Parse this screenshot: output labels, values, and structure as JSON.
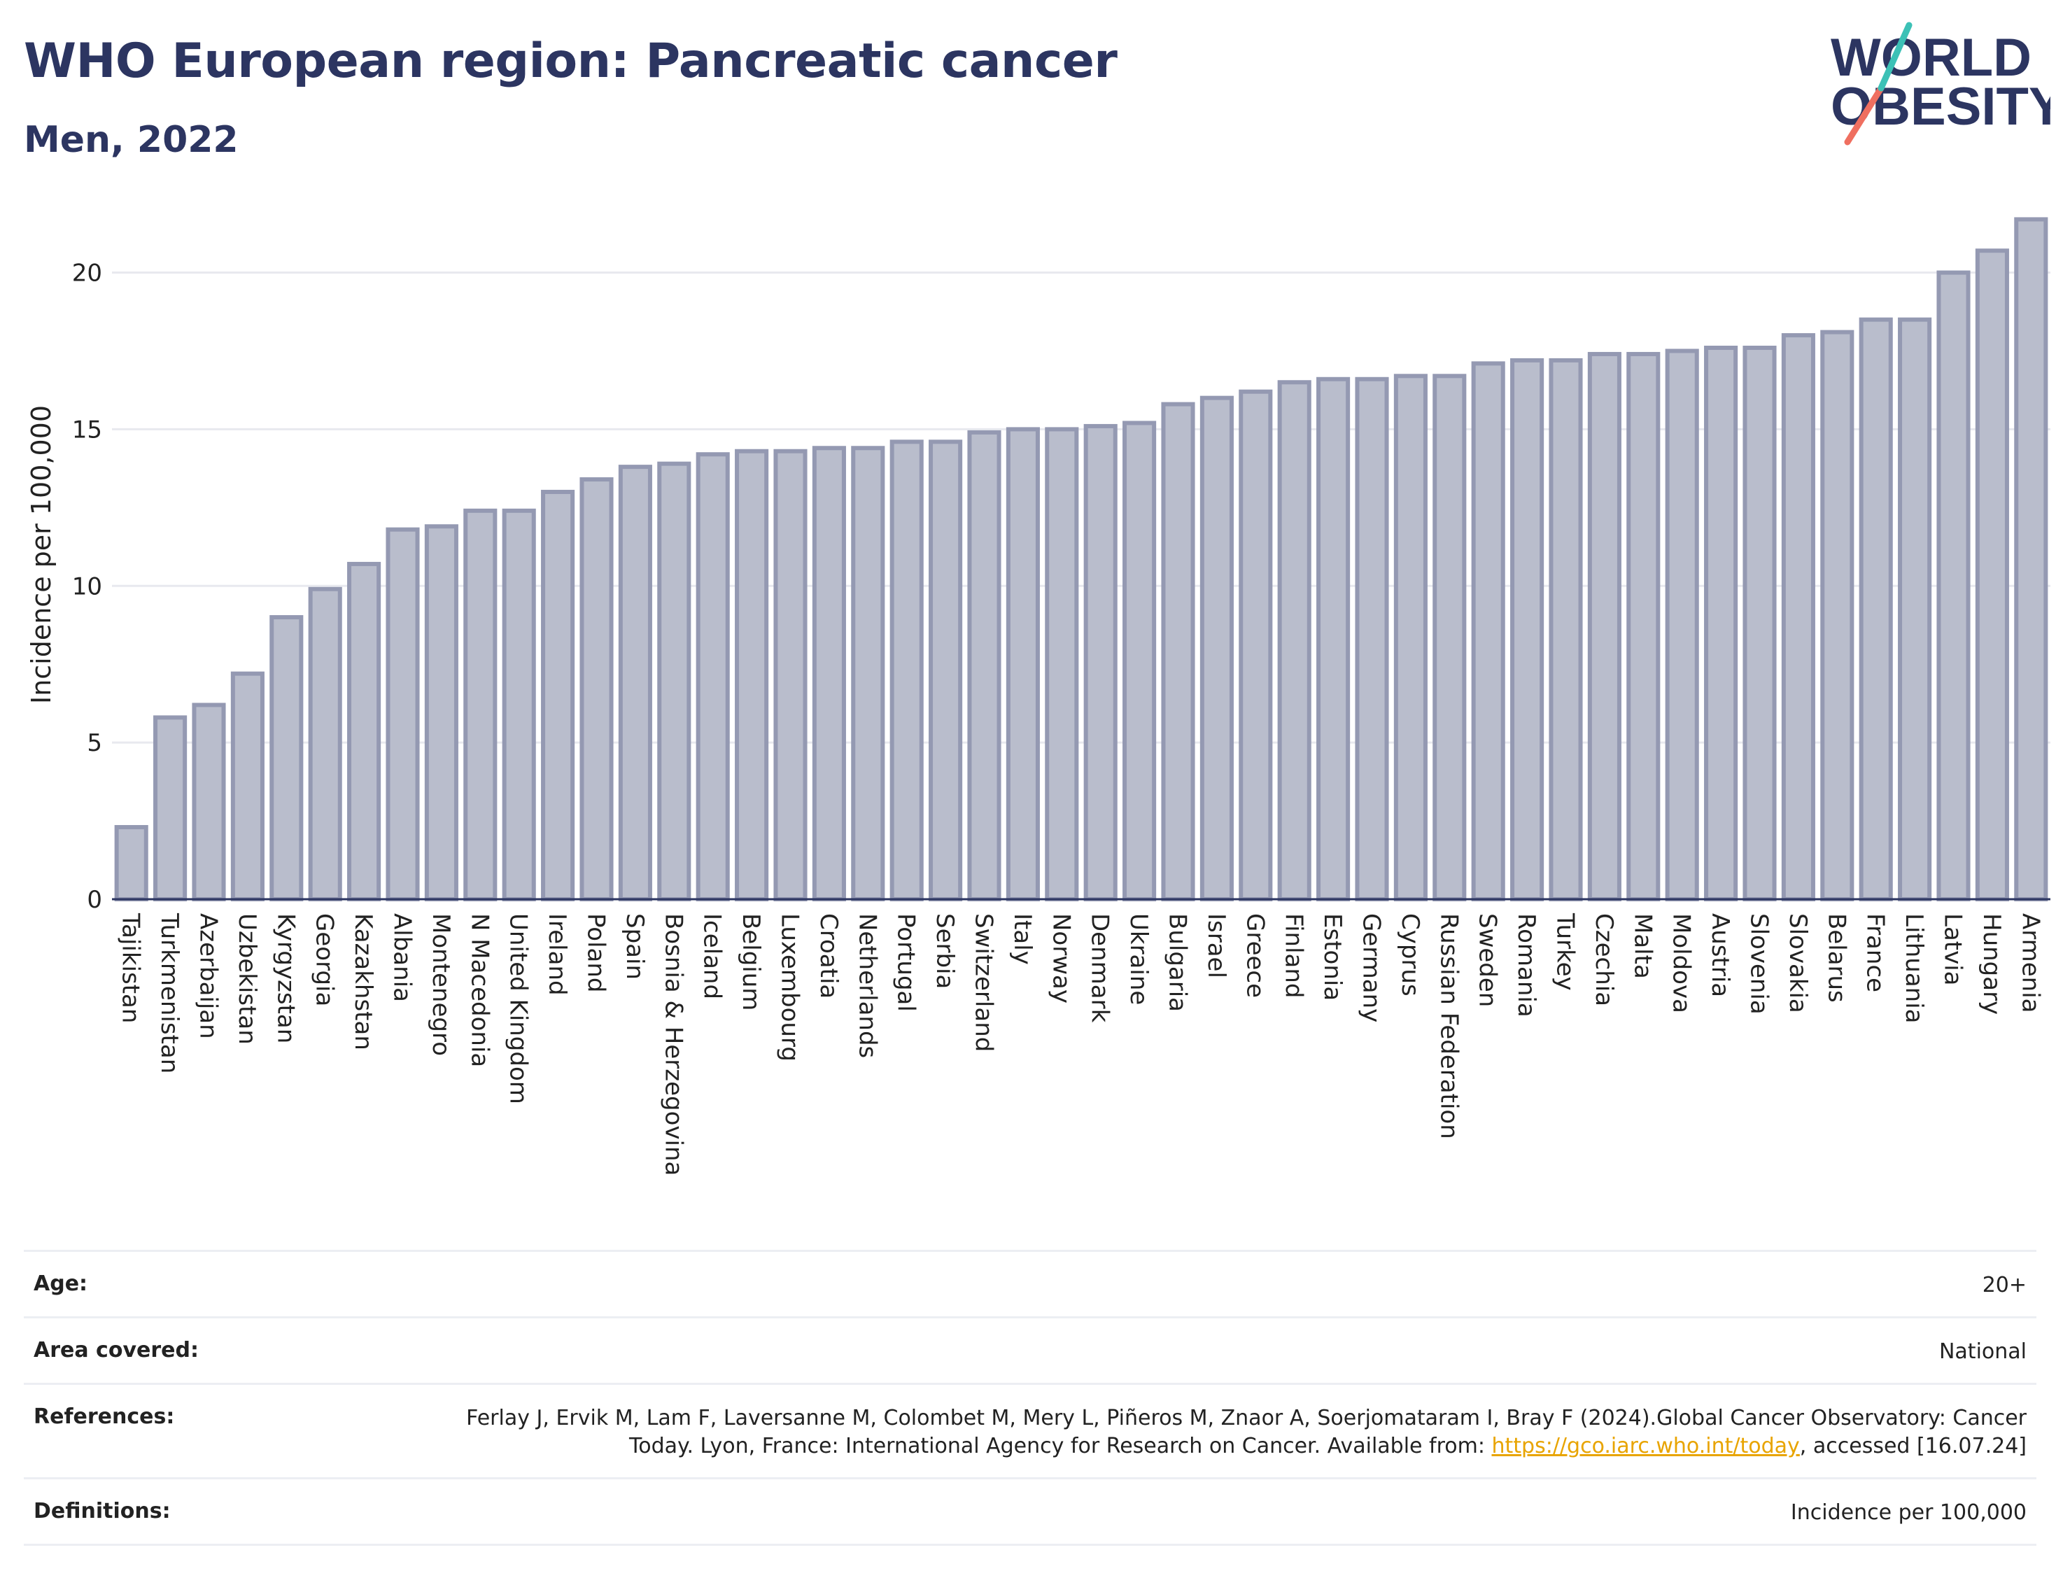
{
  "header": {
    "title": "WHO European region: Pancreatic cancer",
    "subtitle": "Men, 2022"
  },
  "logo": {
    "line1": "WORLD",
    "line2": "OBESITY",
    "colors": [
      "#2c3561",
      "#3cc1b6",
      "#ef6f60"
    ]
  },
  "chart_data": {
    "type": "bar",
    "ylabel": "Incidence per 100,000",
    "xlabel": "",
    "ylim": [
      0,
      22
    ],
    "yticks": [
      0,
      5,
      10,
      15,
      20
    ],
    "grid": true,
    "bar_color": "#b9bdcc",
    "bar_edge_color": "#9499b2",
    "categories": [
      "Tajikistan",
      "Turkmenistan",
      "Azerbaijan",
      "Uzbekistan",
      "Kyrgyzstan",
      "Georgia",
      "Kazakhstan",
      "Albania",
      "Montenegro",
      "N Macedonia",
      "United Kingdom",
      "Ireland",
      "Poland",
      "Spain",
      "Bosnia & Herzegovina",
      "Iceland",
      "Belgium",
      "Luxembourg",
      "Croatia",
      "Netherlands",
      "Portugal",
      "Serbia",
      "Switzerland",
      "Italy",
      "Norway",
      "Denmark",
      "Ukraine",
      "Bulgaria",
      "Israel",
      "Greece",
      "Finland",
      "Estonia",
      "Germany",
      "Cyprus",
      "Russian Federation",
      "Sweden",
      "Romania",
      "Turkey",
      "Czechia",
      "Malta",
      "Moldova",
      "Austria",
      "Slovenia",
      "Slovakia",
      "Belarus",
      "France",
      "Lithuania",
      "Latvia",
      "Hungary",
      "Armenia"
    ],
    "values": [
      2.3,
      5.8,
      6.2,
      7.2,
      9.0,
      9.9,
      10.7,
      11.8,
      11.9,
      12.4,
      12.4,
      13.0,
      13.4,
      13.8,
      13.9,
      14.2,
      14.3,
      14.3,
      14.4,
      14.4,
      14.6,
      14.6,
      14.9,
      15.0,
      15.0,
      15.1,
      15.2,
      15.8,
      16.0,
      16.2,
      16.5,
      16.6,
      16.6,
      16.7,
      16.7,
      17.1,
      17.2,
      17.2,
      17.4,
      17.4,
      17.5,
      17.6,
      17.6,
      18.0,
      18.1,
      18.5,
      18.5,
      20.0,
      20.7,
      21.7
    ]
  },
  "info": {
    "age_label": "Age:",
    "age_value": "20+",
    "area_label": "Area covered:",
    "area_value": "National",
    "references_label": "References:",
    "references_text": "Ferlay J, Ervik M, Lam F, Laversanne M, Colombet M, Mery L, Piñeros M, Znaor A, Soerjomataram I, Bray F (2024).Global Cancer Observatory: Cancer Today. Lyon, France: International Agency for Research on Cancer. Available from: ",
    "references_link": "https://gco.iarc.who.int/today",
    "references_tail": ", accessed [16.07.24]",
    "definitions_label": "Definitions:",
    "definitions_value": "Incidence per 100,000"
  }
}
